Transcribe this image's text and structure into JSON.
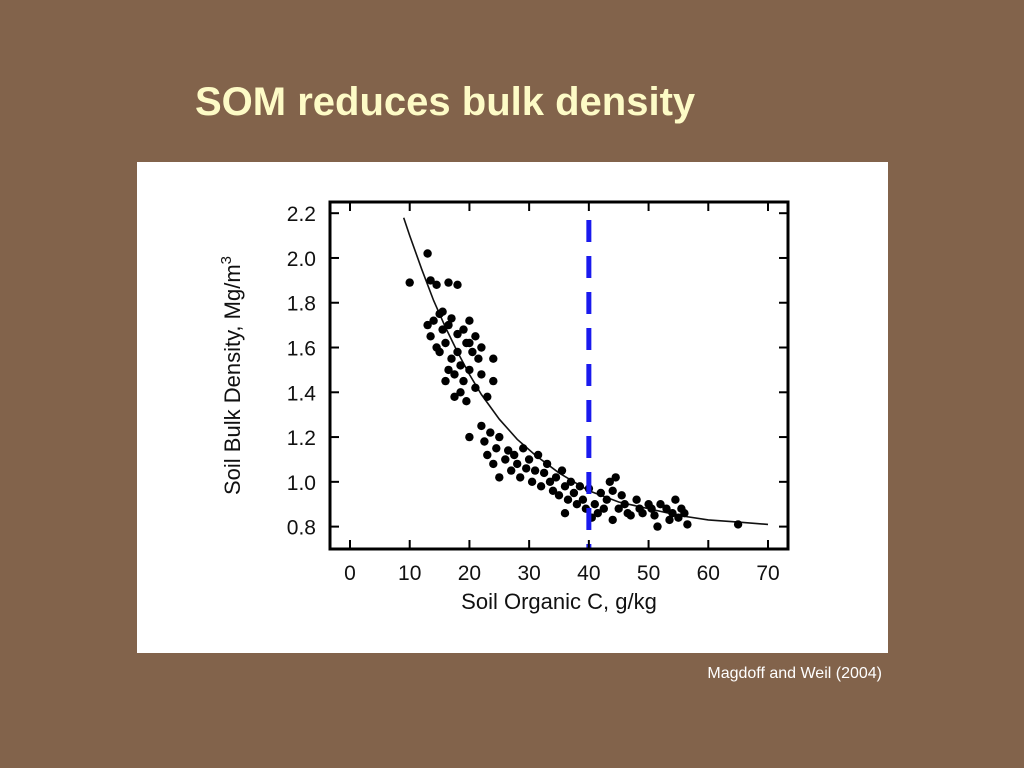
{
  "slide": {
    "title": "SOM reduces bulk density",
    "citation": "Magdoff and Weil (2004)"
  },
  "colors": {
    "background": "#82634b",
    "title": "#fdfbc6",
    "marker_line": "#1a1aee",
    "points": "#000000"
  },
  "chart_data": {
    "type": "scatter",
    "xlabel": "Soil Organic C, g/kg",
    "ylabel": "Soil Bulk Density, Mg/m",
    "ylabel_superscript": "3",
    "xlim": [
      0,
      70
    ],
    "ylim": [
      0.7,
      2.25
    ],
    "x_ticks": [
      0,
      10,
      20,
      30,
      40,
      50,
      60,
      70
    ],
    "y_ticks": [
      0.8,
      1.0,
      1.2,
      1.4,
      1.6,
      1.8,
      2.0,
      2.2
    ],
    "y_tick_labels": [
      "0.8",
      "1.0",
      "1.2",
      "1.4",
      "1.6",
      "1.8",
      "2.0",
      "2.2"
    ],
    "grid": false,
    "reference_line": {
      "x": 40,
      "style": "dashed",
      "color": "#1a1aee"
    },
    "fit_curve": {
      "x": [
        9,
        10,
        12,
        14,
        16,
        18,
        20,
        22,
        25,
        28,
        31,
        35,
        40,
        45,
        50,
        55,
        60,
        65,
        70
      ],
      "y": [
        2.18,
        2.1,
        1.95,
        1.81,
        1.69,
        1.58,
        1.48,
        1.39,
        1.28,
        1.19,
        1.12,
        1.04,
        0.96,
        0.91,
        0.88,
        0.85,
        0.83,
        0.82,
        0.81
      ]
    },
    "points": [
      [
        10,
        1.89
      ],
      [
        13,
        2.02
      ],
      [
        13.5,
        1.9
      ],
      [
        14.5,
        1.88
      ],
      [
        16.5,
        1.89
      ],
      [
        18,
        1.88
      ],
      [
        13,
        1.7
      ],
      [
        13.5,
        1.65
      ],
      [
        14,
        1.72
      ],
      [
        14.5,
        1.6
      ],
      [
        15,
        1.75
      ],
      [
        15.5,
        1.68
      ],
      [
        16,
        1.62
      ],
      [
        16.5,
        1.7
      ],
      [
        17,
        1.55
      ],
      [
        17,
        1.73
      ],
      [
        17.5,
        1.48
      ],
      [
        18,
        1.66
      ],
      [
        18,
        1.58
      ],
      [
        18.5,
        1.52
      ],
      [
        19,
        1.68
      ],
      [
        19,
        1.45
      ],
      [
        19.5,
        1.62
      ],
      [
        20,
        1.5
      ],
      [
        20,
        1.72
      ],
      [
        20.5,
        1.58
      ],
      [
        21,
        1.42
      ],
      [
        21,
        1.65
      ],
      [
        21.5,
        1.55
      ],
      [
        22,
        1.48
      ],
      [
        16,
        1.45
      ],
      [
        16.5,
        1.5
      ],
      [
        17.5,
        1.38
      ],
      [
        18.5,
        1.4
      ],
      [
        19.5,
        1.36
      ],
      [
        15,
        1.58
      ],
      [
        15.5,
        1.76
      ],
      [
        20,
        1.62
      ],
      [
        22,
        1.6
      ],
      [
        24,
        1.55
      ],
      [
        24,
        1.45
      ],
      [
        23,
        1.38
      ],
      [
        20,
        1.2
      ],
      [
        22,
        1.25
      ],
      [
        22.5,
        1.18
      ],
      [
        23,
        1.12
      ],
      [
        23.5,
        1.22
      ],
      [
        24,
        1.08
      ],
      [
        24.5,
        1.15
      ],
      [
        25,
        1.02
      ],
      [
        25,
        1.2
      ],
      [
        26,
        1.1
      ],
      [
        26.5,
        1.14
      ],
      [
        27,
        1.05
      ],
      [
        27.5,
        1.12
      ],
      [
        28,
        1.08
      ],
      [
        28.5,
        1.02
      ],
      [
        29,
        1.15
      ],
      [
        29.5,
        1.06
      ],
      [
        30,
        1.1
      ],
      [
        30.5,
        1.0
      ],
      [
        31,
        1.05
      ],
      [
        31.5,
        1.12
      ],
      [
        32,
        0.98
      ],
      [
        32.5,
        1.04
      ],
      [
        33,
        1.08
      ],
      [
        33.5,
        1.0
      ],
      [
        34,
        0.96
      ],
      [
        34.5,
        1.02
      ],
      [
        35,
        0.94
      ],
      [
        35.5,
        1.05
      ],
      [
        36,
        0.98
      ],
      [
        36.5,
        0.92
      ],
      [
        37,
        1.0
      ],
      [
        37.5,
        0.95
      ],
      [
        38,
        0.9
      ],
      [
        38.5,
        0.98
      ],
      [
        39,
        0.92
      ],
      [
        39.5,
        0.88
      ],
      [
        40,
        0.97
      ],
      [
        41,
        0.9
      ],
      [
        41.5,
        0.86
      ],
      [
        42,
        0.95
      ],
      [
        42.5,
        0.88
      ],
      [
        43,
        0.92
      ],
      [
        43.5,
        1.0
      ],
      [
        44,
        0.96
      ],
      [
        44.5,
        1.02
      ],
      [
        45,
        0.88
      ],
      [
        45.5,
        0.94
      ],
      [
        46,
        0.9
      ],
      [
        46.5,
        0.86
      ],
      [
        47,
        0.85
      ],
      [
        48,
        0.92
      ],
      [
        48.5,
        0.88
      ],
      [
        49,
        0.86
      ],
      [
        50,
        0.9
      ],
      [
        50.5,
        0.88
      ],
      [
        51,
        0.85
      ],
      [
        52,
        0.9
      ],
      [
        53,
        0.88
      ],
      [
        53.5,
        0.83
      ],
      [
        54,
        0.86
      ],
      [
        54.5,
        0.92
      ],
      [
        55,
        0.84
      ],
      [
        55.5,
        0.88
      ],
      [
        56,
        0.86
      ],
      [
        56.5,
        0.81
      ],
      [
        51.5,
        0.8
      ],
      [
        40.5,
        0.84
      ],
      [
        44,
        0.83
      ],
      [
        36,
        0.86
      ],
      [
        65,
        0.81
      ]
    ]
  }
}
